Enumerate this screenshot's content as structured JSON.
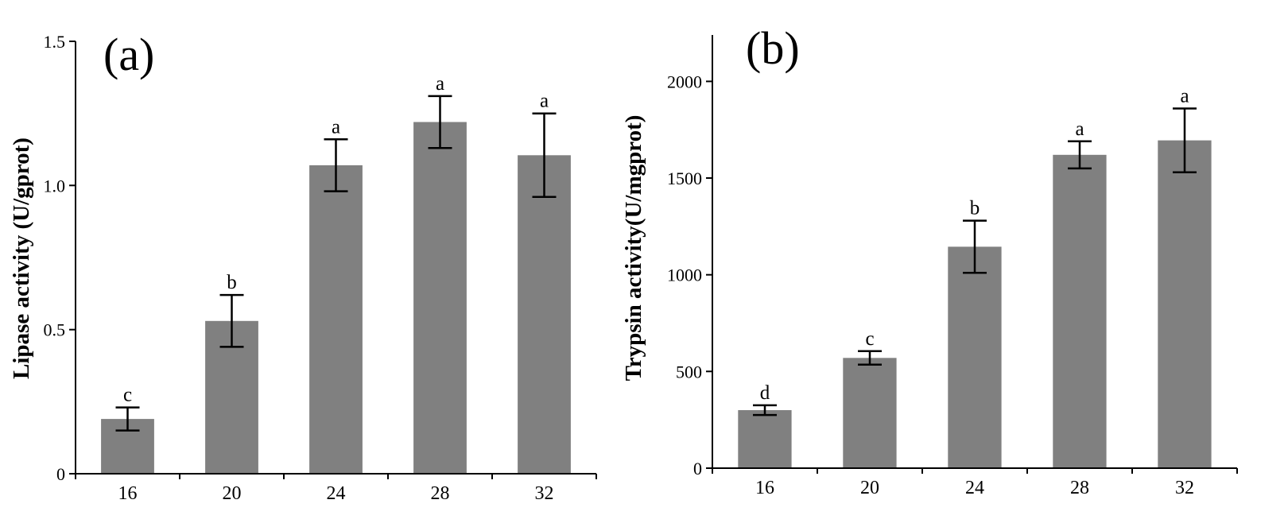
{
  "chart_data": [
    {
      "type": "bar",
      "panel_label": "(a)",
      "title": "",
      "xlabel": "",
      "ylabel": "Lipase activity (U/gprot)",
      "categories": [
        "16",
        "20",
        "24",
        "28",
        "32"
      ],
      "values": [
        0.19,
        0.53,
        1.07,
        1.22,
        1.105
      ],
      "errors": [
        0.04,
        0.09,
        0.09,
        0.09,
        0.145
      ],
      "significance": [
        "c",
        "b",
        "a",
        "a",
        "a"
      ],
      "ylim": [
        0,
        1.5
      ],
      "yticks": [
        0,
        0.5,
        1.0,
        1.5
      ],
      "ytick_labels": [
        "0",
        "0.5",
        "1.0",
        "1.5"
      ],
      "bar_color": "#808080",
      "grid": false
    },
    {
      "type": "bar",
      "panel_label": "(b)",
      "title": "",
      "xlabel": "",
      "ylabel": "Trypsin activity(U/mgprot)",
      "categories": [
        "16",
        "20",
        "24",
        "28",
        "32"
      ],
      "values": [
        300,
        570,
        1145,
        1620,
        1695
      ],
      "errors": [
        25,
        35,
        135,
        70,
        165
      ],
      "significance": [
        "d",
        "c",
        "b",
        "a",
        "a"
      ],
      "ylim": [
        0,
        2240
      ],
      "yticks": [
        0,
        500,
        1000,
        1500,
        2000
      ],
      "ytick_labels": [
        "0",
        "500",
        "1000",
        "1500",
        "2000"
      ],
      "bar_color": "#808080",
      "grid": false
    }
  ]
}
